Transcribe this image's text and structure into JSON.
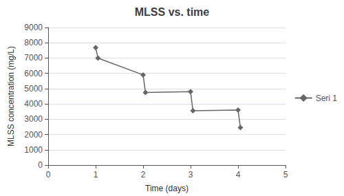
{
  "chart_data": {
    "type": "line",
    "title": "MLSS vs. time",
    "xlabel": "Time (days)",
    "ylabel": "MLSS concentration (mg/L)",
    "x": [
      1.0,
      1.05,
      2.0,
      2.05,
      3.0,
      3.05,
      4.0,
      4.05
    ],
    "series": [
      {
        "name": "Seri 1",
        "color": "#666666",
        "marker": "diamond",
        "values": [
          7680,
          7000,
          5900,
          4750,
          4800,
          3550,
          3600,
          2450
        ]
      }
    ],
    "xlim": [
      0,
      5
    ],
    "xticks": [
      0,
      1,
      2,
      3,
      4,
      5
    ],
    "ylim": [
      0,
      9000
    ],
    "yticks": [
      0,
      1000,
      2000,
      3000,
      4000,
      5000,
      6000,
      7000,
      8000,
      9000
    ],
    "grid": true,
    "legend": "right"
  }
}
